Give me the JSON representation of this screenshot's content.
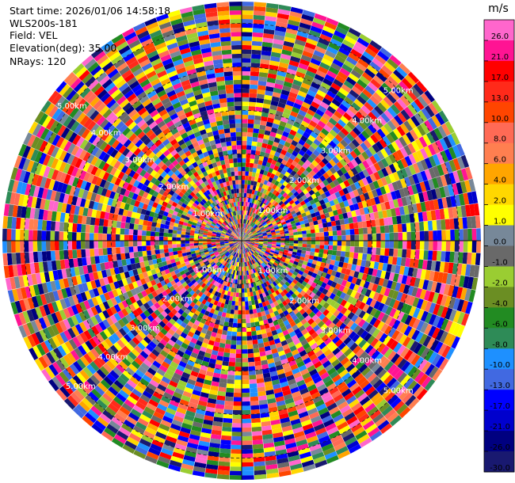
{
  "header": {
    "start_time": "Start time: 2026/01/06 14:58:18",
    "instrument": "WLS200s-181",
    "field": "Field: VEL",
    "elevation": "Elevation(deg): 35.00",
    "nrays": "NRays: 120"
  },
  "colorbar": {
    "unit": "m/s",
    "labels": [
      "26.0",
      "21.0",
      "17.0",
      "13.0",
      "10.0",
      "8.0",
      "6.0",
      "4.0",
      "2.0",
      "1.0",
      "0.0",
      "-1.0",
      "-2.0",
      "-4.0",
      "-6.0",
      "-8.0",
      "-10.0",
      "-13.0",
      "-17.0",
      "-21.0",
      "-26.0",
      "-30.0"
    ],
    "colors": [
      "#ff66cc",
      "#ff1493",
      "#ff0000",
      "#ff2a1a",
      "#ff4500",
      "#ff6a55",
      "#ff7f50",
      "#ffa500",
      "#ffd700",
      "#ffff00",
      "#778899",
      "#696969",
      "#9acd32",
      "#6b8e23",
      "#228b22",
      "#2e8b57",
      "#1e90ff",
      "#4169e1",
      "#0000ff",
      "#0000cd",
      "#000080",
      "#191970"
    ]
  },
  "chart_data": {
    "type": "heatmap",
    "subtype": "ppi-polar",
    "field": "VEL",
    "unit": "m/s",
    "n_rays": 120,
    "range_rings_km": [
      "1.00km",
      "2.00km",
      "3.00km",
      "4.00km",
      "5.00km"
    ],
    "value_bins": [
      -30.0,
      -26.0,
      -21.0,
      -17.0,
      -13.0,
      -10.0,
      -8.0,
      -6.0,
      -4.0,
      -2.0,
      -1.0,
      0.0,
      1.0,
      2.0,
      4.0,
      6.0,
      8.0,
      10.0,
      13.0,
      17.0,
      21.0,
      26.0
    ],
    "max_range_km": 5.5,
    "n_gates": 55,
    "grid": true
  }
}
